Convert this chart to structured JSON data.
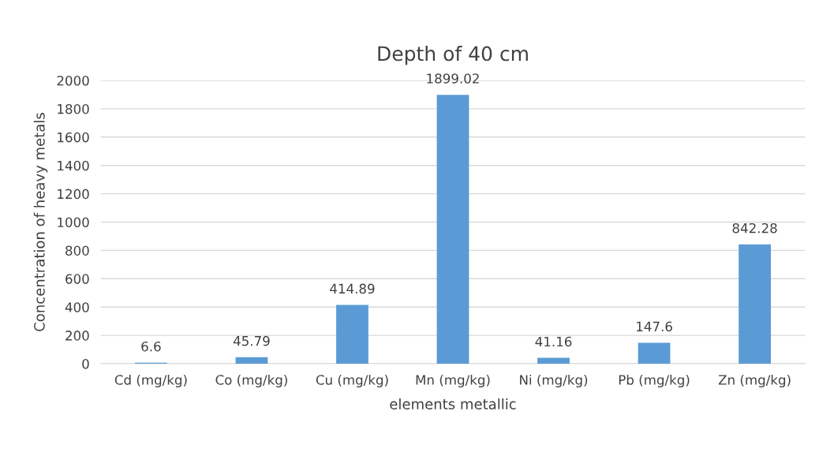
{
  "chart_data": {
    "type": "bar",
    "title": "Depth of 40 cm",
    "xlabel": "elements metallic",
    "ylabel": "Concentration of heavy metals",
    "categories": [
      "Cd (mg/kg)",
      "Co (mg/kg)",
      "Cu (mg/kg)",
      "Mn (mg/kg)",
      "Ni (mg/kg)",
      "Pb (mg/kg)",
      "Zn (mg/kg)"
    ],
    "values": [
      6.6,
      45.79,
      414.89,
      1899.02,
      41.16,
      147.6,
      842.28
    ],
    "color": "#5b9bd5",
    "ylim": [
      0,
      2000
    ],
    "yticks": [
      0,
      200,
      400,
      600,
      800,
      1000,
      1200,
      1400,
      1600,
      1800,
      2000
    ],
    "grid": "y",
    "data_labels": true
  }
}
